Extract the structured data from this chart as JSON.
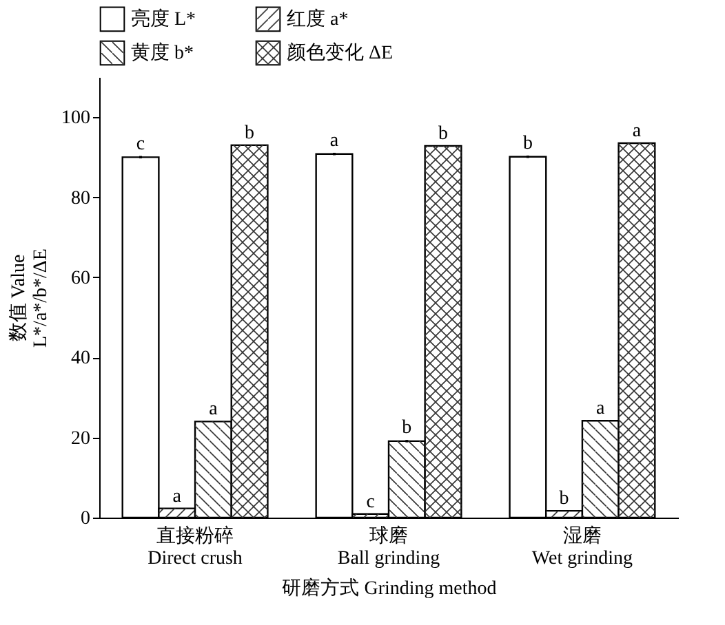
{
  "chart_data": {
    "type": "bar",
    "xlabel": "研磨方式 Grinding method",
    "ylabel": "数值 Value\nL*/a*/b*/ΔE",
    "categories": [
      "直接粉碎\nDirect crush",
      "球磨\nBall grinding",
      "湿磨\nWet grinding"
    ],
    "series": [
      {
        "name": "亮度 L*",
        "color": "#ffffff",
        "values": [
          90.0,
          90.8,
          90.1
        ],
        "errors": [
          0.3,
          0.3,
          0.3
        ]
      },
      {
        "name": "红度 a*",
        "color": "#ffffff",
        "values": [
          2.3,
          0.9,
          1.7
        ]
      },
      {
        "name": "黄度 b*",
        "color": "#ffffff",
        "values": [
          24.0,
          19.1,
          24.2
        ],
        "errors": [
          null,
          0.3,
          null
        ]
      },
      {
        "name": "颜色变化 ΔE",
        "color": "#ffffff",
        "values": [
          93.0,
          92.8,
          93.5
        ]
      }
    ],
    "ylim": [
      0,
      110
    ],
    "yticks": [
      0,
      20,
      40,
      60,
      80,
      100
    ],
    "grid": false,
    "legend": "top",
    "annotations": [
      "c",
      "a",
      "a",
      "b",
      "a",
      "c",
      "b",
      "b",
      "b",
      "b",
      "a",
      "a"
    ]
  }
}
